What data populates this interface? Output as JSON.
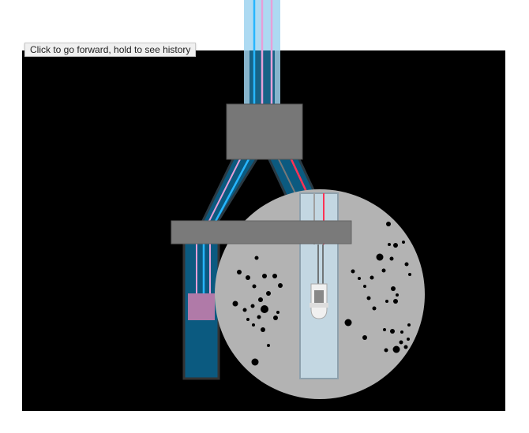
{
  "tooltip": {
    "text": "Click to go forward, hold to see history"
  },
  "colors": {
    "canvas_background": "#000000",
    "page_background": "#ffffff",
    "tube_dark_blue": "#0b5a80",
    "tube_light_blue": "#9fd3f0",
    "wire_cyan": "#27b6ff",
    "wire_pink": "#e6a0d8",
    "wire_red": "#ff3355",
    "connector_gray": "#777777",
    "clamp_gray": "#7a7a7a",
    "lens_gray": "#b3b3b3",
    "sleeve_pink": "#b07aa8",
    "dots": "#000000"
  }
}
